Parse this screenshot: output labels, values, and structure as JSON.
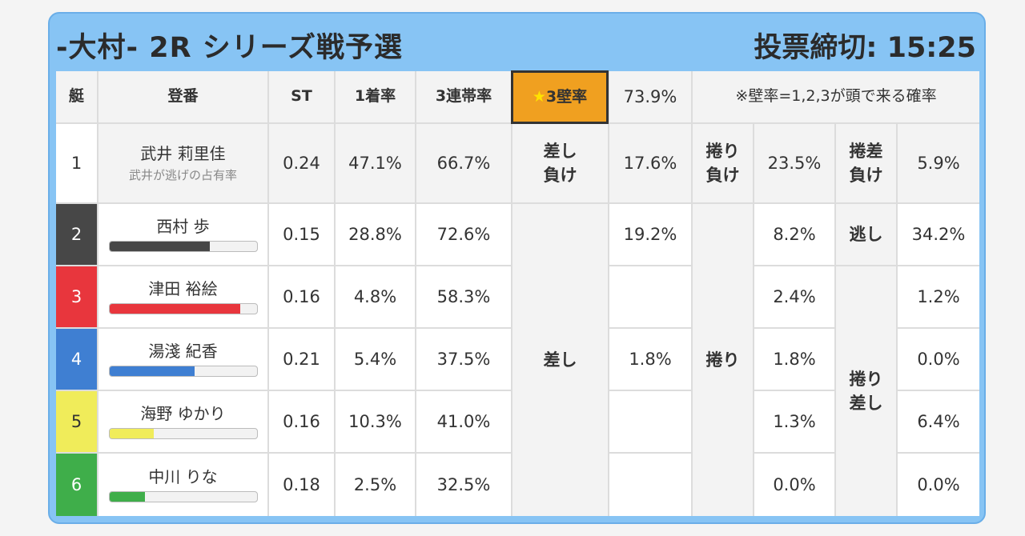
{
  "header": {
    "title": "-大村- 2R シリーズ戦予選",
    "deadline": "投票締切: 15:25"
  },
  "columns": {
    "boat": "艇",
    "name": "登番",
    "st": "ST",
    "first_rate": "1着率",
    "trio_rate": "3連帯率",
    "star": "★",
    "wall_rate": "3壁率",
    "wall_value": "73.9%",
    "note": "※壁率=1,2,3が頭で来る確率"
  },
  "colors": {
    "boat1": "#ffffff",
    "boat2": "#474747",
    "boat3": "#e8363d",
    "boat4": "#3f7fd2",
    "boat5": "#f0ec5a",
    "boat6": "#3fae4a"
  },
  "racers": [
    {
      "boat": "1",
      "name": "武井 莉里佳",
      "sub": "武井が逃げの占有率",
      "st": "0.24",
      "first": "47.1%",
      "trio": "66.7%"
    },
    {
      "boat": "2",
      "name": "西村 歩",
      "st": "0.15",
      "first": "28.8%",
      "trio": "72.6%",
      "bar": 0.68,
      "bar_color": "#474747"
    },
    {
      "boat": "3",
      "name": "津田 裕絵",
      "st": "0.16",
      "first": "4.8%",
      "trio": "58.3%",
      "bar": 0.89,
      "bar_color": "#e8363d"
    },
    {
      "boat": "4",
      "name": "湯淺 紀香",
      "st": "0.21",
      "first": "5.4%",
      "trio": "37.5%",
      "bar": 0.58,
      "bar_color": "#3f7fd2"
    },
    {
      "boat": "5",
      "name": "海野 ゆかり",
      "st": "0.16",
      "first": "10.3%",
      "trio": "41.0%",
      "bar": 0.3,
      "bar_color": "#f0ec5a"
    },
    {
      "boat": "6",
      "name": "中川 りな",
      "st": "0.18",
      "first": "2.5%",
      "trio": "32.5%",
      "bar": 0.24,
      "bar_color": "#3fae4a"
    }
  ],
  "patterns": {
    "row1": {
      "sashi_make": "差し\n負け",
      "sashi_make_val": "17.6%",
      "makuri_make": "捲り\n負け",
      "makuri_make_val": "23.5%",
      "makurisashi_make": "捲差\n負け",
      "makurisashi_make_val": "5.9%"
    },
    "sashi": "差し",
    "sashi_vals": [
      "19.2%",
      "",
      "1.8%",
      "",
      ""
    ],
    "makuri": "捲り",
    "makuri_vals": [
      "8.2%",
      "2.4%",
      "1.8%",
      "1.3%",
      "0.0%"
    ],
    "nige": "逃し",
    "nige_val": "34.2%",
    "makurisashi": "捲り\n差し",
    "makurisashi_vals": [
      "1.2%",
      "0.0%",
      "6.4%",
      "0.0%"
    ]
  }
}
